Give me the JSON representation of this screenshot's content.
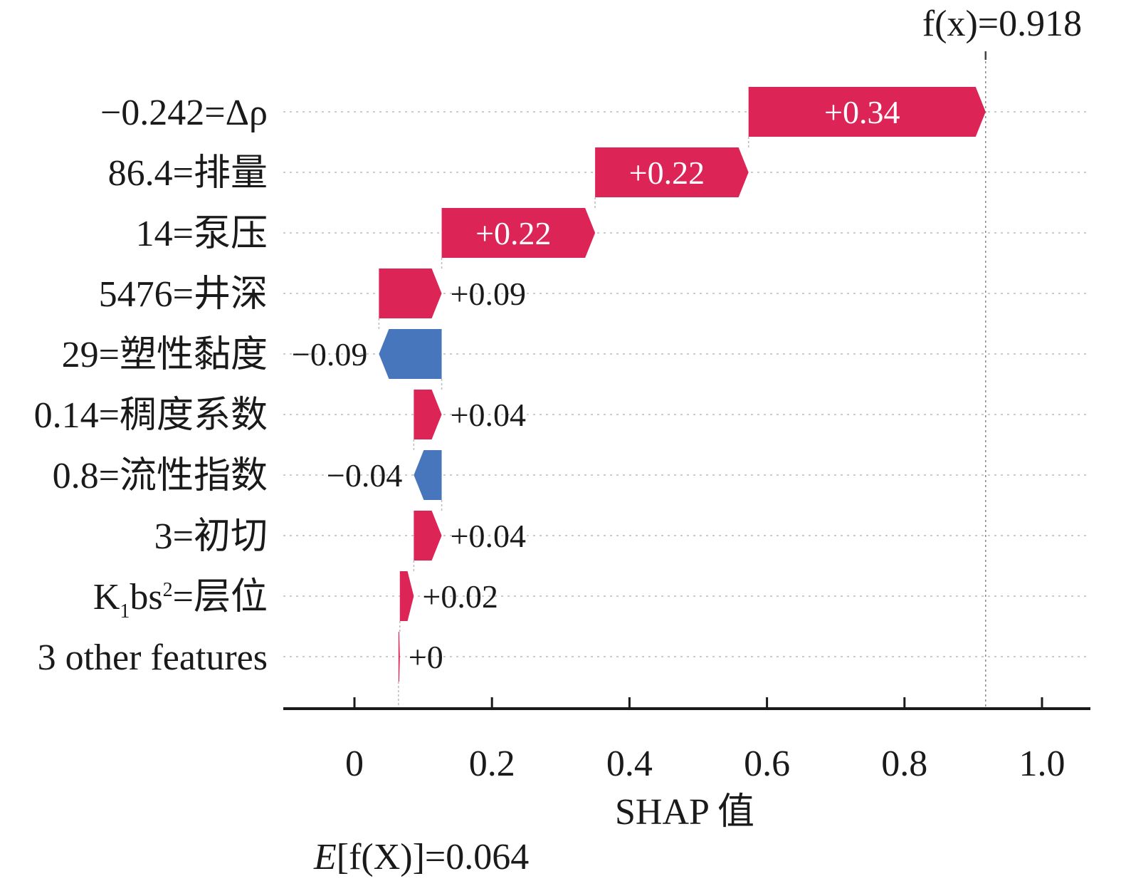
{
  "chart_data": {
    "type": "bar",
    "subtype": "waterfall",
    "xlabel": "SHAP 值",
    "xlim": [
      -0.105,
      1.07
    ],
    "xticks": [
      "0",
      "0.2",
      "0.4",
      "0.6",
      "0.8",
      "1.0"
    ],
    "xtick_values": [
      0,
      0.2,
      0.4,
      0.6,
      0.8,
      1.0
    ],
    "base_value": 0.064,
    "output_value": 0.918,
    "base_label": {
      "italic_e": "E",
      "text": "[f(X)]=0.064"
    },
    "output_label": {
      "text": "f(x)=0.918"
    },
    "features": [
      {
        "label": "−0.242=Δρ",
        "value": 0.34,
        "value_text": "+0.34",
        "sign": "pos",
        "label_inside": true
      },
      {
        "label": "86.4=排量",
        "value": 0.22,
        "value_text": "+0.22",
        "sign": "pos",
        "label_inside": true
      },
      {
        "label": "14=泵压",
        "value": 0.22,
        "value_text": "+0.22",
        "sign": "pos",
        "label_inside": true
      },
      {
        "label": "5476=井深",
        "value": 0.09,
        "value_text": "+0.09",
        "sign": "pos",
        "label_inside": false
      },
      {
        "label": "29=塑性黏度",
        "value": -0.09,
        "value_text": "−0.09",
        "sign": "neg",
        "label_inside": false
      },
      {
        "label": "0.14=稠度系数",
        "value": 0.04,
        "value_text": "+0.04",
        "sign": "pos",
        "label_inside": false
      },
      {
        "label": "0.8=流性指数",
        "value": -0.04,
        "value_text": "−0.04",
        "sign": "neg",
        "label_inside": false
      },
      {
        "label": "3=初切",
        "value": 0.04,
        "value_text": "+0.04",
        "sign": "pos",
        "label_inside": false
      },
      {
        "label": "K1bs2=层位",
        "label_parts": {
          "K": "K",
          "sub": "1",
          "mid": "bs",
          "sup": "2",
          "rest": "=层位"
        },
        "value": 0.02,
        "value_text": "+0.02",
        "sign": "pos",
        "label_inside": false
      },
      {
        "label": "3 other features",
        "value": 0.002,
        "value_text": "+0",
        "sign": "pos",
        "label_inside": false
      }
    ],
    "colors": {
      "positive": "#dd2457",
      "negative": "#4876bc",
      "axis": "#1a1a1a",
      "guide": "#bbbbbb"
    },
    "grid": false,
    "legend": "none"
  }
}
